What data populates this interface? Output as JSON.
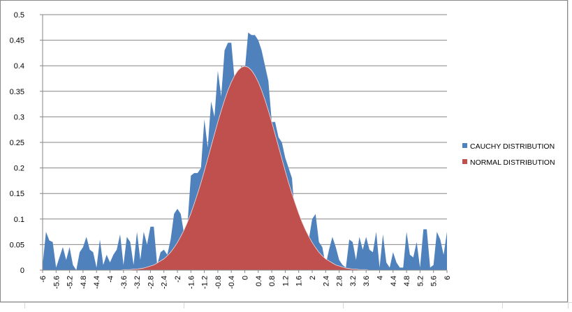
{
  "chart_data": {
    "type": "area",
    "categories": [
      -6,
      null,
      null,
      null,
      -5.6,
      null,
      null,
      null,
      -5.2,
      null,
      null,
      null,
      -4.8,
      null,
      null,
      null,
      -4.4,
      null,
      null,
      null,
      -4,
      null,
      null,
      null,
      -3.6,
      null,
      null,
      null,
      -3.2,
      null,
      null,
      null,
      -2.8,
      null,
      null,
      null,
      -2.4,
      null,
      null,
      null,
      -2,
      null,
      null,
      null,
      -1.6,
      null,
      null,
      null,
      -1.2,
      null,
      null,
      null,
      -0.8,
      null,
      null,
      null,
      -0.4,
      null,
      null,
      null,
      0,
      null,
      null,
      null,
      0.4,
      null,
      null,
      null,
      0.8,
      null,
      null,
      null,
      1.2,
      null,
      null,
      null,
      1.6,
      null,
      null,
      null,
      2,
      null,
      null,
      null,
      2.4,
      null,
      null,
      null,
      2.8,
      null,
      null,
      null,
      3.2,
      null,
      null,
      null,
      3.6,
      null,
      null,
      null,
      4,
      null,
      null,
      null,
      4.4,
      null,
      null,
      null,
      4.8,
      null,
      null,
      null,
      5.2,
      null,
      null,
      null,
      5.6,
      null,
      null,
      null,
      6
    ],
    "series": [
      {
        "name": "CAUCHY DISTRIBUTION",
        "color": "#4f81bd",
        "values": [
          0.01,
          0.075,
          0.058,
          0.055,
          0.005,
          0.025,
          0.045,
          0.02,
          0.045,
          0.01,
          0,
          0.035,
          0.045,
          0.065,
          0.04,
          0.035,
          0.005,
          0.06,
          0.01,
          0.03,
          0.015,
          0.03,
          0.04,
          0.07,
          0.01,
          0.065,
          0.055,
          0.01,
          0.075,
          0.02,
          0.075,
          0.05,
          0.085,
          0.085,
          0.01,
          0.035,
          0.04,
          0.03,
          0.06,
          0.11,
          0.12,
          0.11,
          0.07,
          0.09,
          0.185,
          0.19,
          0.19,
          0.2,
          0.295,
          0.24,
          0.33,
          0.3,
          0.39,
          0.34,
          0.43,
          0.445,
          0.445,
          0.37,
          0.38,
          0.4,
          0.39,
          0.465,
          0.46,
          0.46,
          0.45,
          0.43,
          0.4,
          0.37,
          0.29,
          0.29,
          0.26,
          0.25,
          0.22,
          0.2,
          0.18,
          0.095,
          0.11,
          0.09,
          0.075,
          0.06,
          0.1,
          0.11,
          0.055,
          0.045,
          0.01,
          0.04,
          0.065,
          0.045,
          0.02,
          0.01,
          0.005,
          0.06,
          0.055,
          0.02,
          0.065,
          0.04,
          0.065,
          0.04,
          0.035,
          0.075,
          0.005,
          0.07,
          0.015,
          0.005,
          0.035,
          0.015,
          0.005,
          0.005,
          0.075,
          0.03,
          0.025,
          0.055,
          0.005,
          0.08,
          0.08,
          0.005,
          0.01,
          0.075,
          0.06,
          0.03,
          0.075
        ]
      },
      {
        "name": "NORMAL DISTRIBUTION",
        "color": "#c0504d",
        "values": [
          0,
          0,
          0,
          0,
          0,
          0,
          0,
          0,
          0,
          0,
          0,
          0,
          0,
          0,
          0,
          0,
          0,
          0,
          0,
          0,
          0,
          0,
          0,
          0,
          0.001,
          0.001,
          0.001,
          0.002,
          0.002,
          0.003,
          0.004,
          0.006,
          0.008,
          0.01,
          0.014,
          0.018,
          0.022,
          0.028,
          0.035,
          0.044,
          0.054,
          0.066,
          0.079,
          0.094,
          0.111,
          0.13,
          0.15,
          0.171,
          0.194,
          0.218,
          0.242,
          0.266,
          0.29,
          0.312,
          0.333,
          0.352,
          0.368,
          0.381,
          0.391,
          0.397,
          0.399,
          0.397,
          0.391,
          0.381,
          0.368,
          0.352,
          0.333,
          0.312,
          0.29,
          0.266,
          0.242,
          0.218,
          0.194,
          0.171,
          0.15,
          0.13,
          0.111,
          0.094,
          0.079,
          0.066,
          0.054,
          0.044,
          0.035,
          0.028,
          0.022,
          0.018,
          0.014,
          0.01,
          0.008,
          0.006,
          0.004,
          0.003,
          0.002,
          0.002,
          0.001,
          0.001,
          0.001,
          0,
          0,
          0,
          0,
          0,
          0,
          0,
          0,
          0,
          0,
          0,
          0,
          0,
          0,
          0,
          0,
          0,
          0,
          0,
          0,
          0,
          0,
          0,
          0
        ]
      }
    ],
    "ylim": [
      0,
      0.5
    ],
    "yticks": [
      0,
      0.05,
      0.1,
      0.15,
      0.2,
      0.25,
      0.3,
      0.35,
      0.4,
      0.45,
      0.5
    ],
    "grid": true,
    "legend": "right"
  }
}
